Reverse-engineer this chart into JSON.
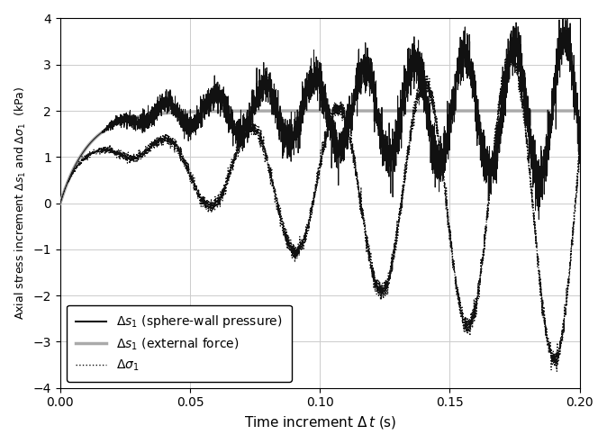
{
  "xlim": [
    0,
    0.2
  ],
  "ylim": [
    -4,
    4
  ],
  "xticks": [
    0,
    0.05,
    0.1,
    0.15,
    0.2
  ],
  "yticks": [
    -4,
    -3,
    -2,
    -1,
    0,
    1,
    2,
    3,
    4
  ],
  "legend_labels_math": [
    "$\\Delta s_1$ (sphere-wall pressure)",
    "$\\Delta s_1$ (external force)",
    "$\\Delta\\sigma_1$"
  ],
  "color_black": "#111111",
  "color_gray": "#aaaaaa",
  "background_color": "#ffffff",
  "grid_color": "#cccccc",
  "seed": 42
}
